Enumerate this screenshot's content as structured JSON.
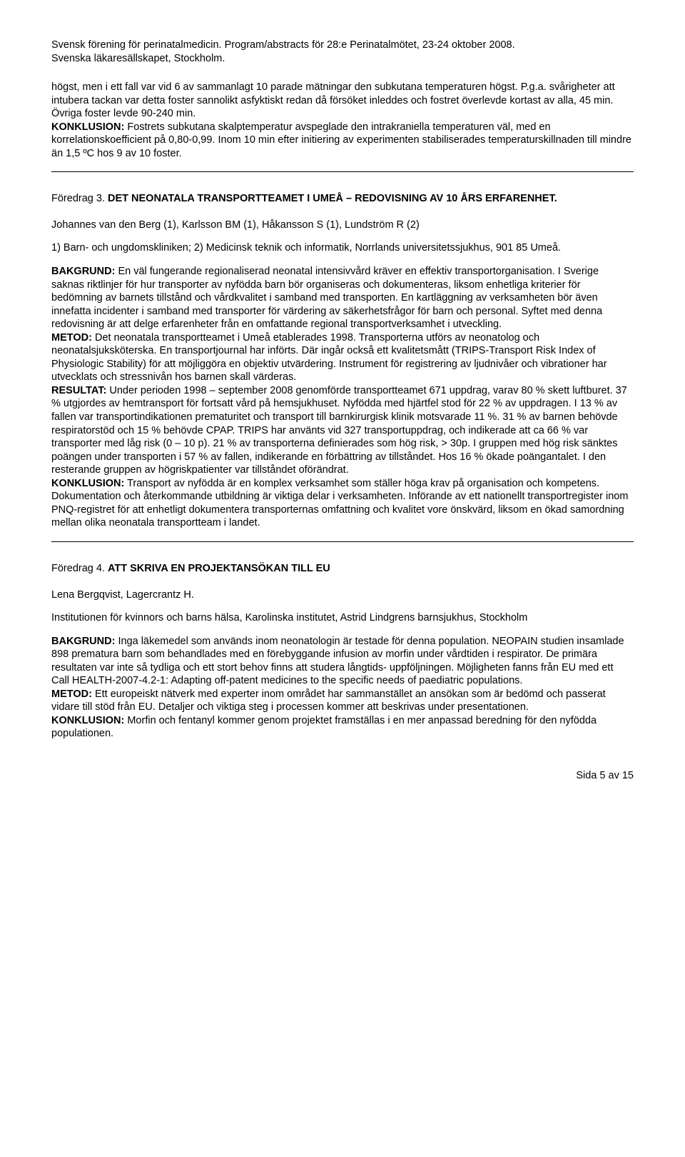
{
  "header": {
    "line1": "Svensk förening för perinatalmedicin. Program/abstracts för 28:e Perinatalmötet, 23-24 oktober 2008.",
    "line2": "Svenska läkaresällskapet, Stockholm."
  },
  "intro": {
    "p1_a": "högst, men i ett fall var vid 6 av sammanlagt 10 parade mätningar den subkutana temperaturen högst. P.g.a. svårigheter att intubera tackan var detta foster sannolikt asfyktiskt redan då försöket inleddes och fostret överlevde kortast av alla, 45 min. Övriga foster levde 90-240 min.",
    "p1_k": "KONKLUSION:",
    "p1_b": " Fostrets subkutana skalptemperatur avspeglade den intrakraniella temperaturen väl, med en korrelationskoefficient på 0,80-0,99. Inom 10 min efter initiering av experimenten stabiliserades temperaturskillnaden till mindre än 1,5 ºC hos 9 av 10 foster."
  },
  "foredrag3": {
    "num": "Föredrag 3. ",
    "title": "DET NEONATALA TRANSPORTTEAMET I UMEÅ – REDOVISNING AV 10 ÅRS ERFARENHET.",
    "authors": "Johannes van den Berg (1), Karlsson BM (1), Håkansson S (1), Lundström R (2)",
    "affil": "1) Barn- och ungdomskliniken; 2) Medicinsk teknik och informatik, Norrlands universitetssjukhus, 901 85 Umeå.",
    "h_bak": "BAKGRUND:",
    "t_bak": " En väl fungerande regionaliserad neonatal intensivvård kräver en effektiv transportorganisation. I Sverige saknas riktlinjer för hur transporter av nyfödda barn bör organiseras och dokumenteras, liksom enhetliga kriterier för bedömning av barnets tillstånd och vårdkvalitet i samband med transporten. En kartläggning av verksamheten bör även innefatta incidenter i samband med transporter för värdering av säkerhetsfrågor för barn och personal. Syftet med denna redovisning är att delge erfarenheter från en omfattande regional transportverksamhet i utveckling.",
    "h_met": "METOD:",
    "t_met": " Det neonatala transportteamet i Umeå etablerades 1998. Transporterna utförs av neonatolog och neonatalsjuksköterska. En transportjournal har införts. Där ingår också ett kvalitetsmått (TRIPS-Transport Risk Index of Physiologic Stability) för att möjliggöra en objektiv utvärdering. Instrument för registrering av ljudnivåer och vibrationer har utvecklats och stressnivån hos barnen skall värderas.",
    "h_res": "RESULTAT:",
    "t_res": " Under perioden 1998 – september 2008 genomförde transportteamet 671 uppdrag, varav 80 % skett luftburet. 37 % utgjordes av hemtransport för fortsatt vård på hemsjukhuset. Nyfödda med hjärtfel stod för 22 % av uppdragen. I 13 % av fallen var transportindikationen prematuritet och transport till barnkirurgisk klinik motsvarade 11 %. 31 % av barnen behövde respiratorstöd och 15 % behövde CPAP. TRIPS har använts vid 327 transportuppdrag, och indikerade att ca 66 % var transporter med låg risk (0 – 10 p). 21 % av transporterna definierades som hög risk, > 30p. I gruppen med hög risk sänktes poängen under transporten i 57 % av fallen, indikerande en förbättring av tillståndet. Hos 16 % ökade poängantalet. I den resterande gruppen av högriskpatienter var tillståndet oförändrat.",
    "h_kon": "KONKLUSION:",
    "t_kon": " Transport av nyfödda är en komplex verksamhet som ställer höga krav på organisation och kompetens. Dokumentation och återkommande utbildning är viktiga delar i verksamheten. Införande av ett nationellt transportregister inom PNQ-registret för att enhetligt dokumentera transporternas omfattning och kvalitet vore önskvärd, liksom en ökad samordning mellan olika neonatala transportteam i landet."
  },
  "foredrag4": {
    "num": "Föredrag 4. ",
    "title": "ATT SKRIVA EN PROJEKTANSÖKAN TILL EU",
    "authors": "Lena Bergqvist, Lagercrantz H.",
    "affil": "Institutionen för kvinnors och barns hälsa, Karolinska institutet, Astrid Lindgrens barnsjukhus, Stockholm",
    "h_bak": "BAKGRUND:",
    "t_bak": " Inga läkemedel som används inom neonatologin är testade för denna population. NEOPAIN studien insamlade 898 prematura barn som behandlades med en förebyggande infusion av morfin under vårdtiden i respirator. De primära resultaten var inte så tydliga och ett stort behov finns att studera långtids- uppföljningen. Möjligheten fanns från EU med ett Call HEALTH-2007-4.2-1: Adapting off-patent medicines to the specific needs of paediatric populations.",
    "h_met": "METOD:",
    "t_met": " Ett europeiskt nätverk med experter inom området har sammanstället an ansökan som är bedömd och passerat vidare till stöd från EU. Detaljer och viktiga steg i processen kommer att beskrivas under presentationen.",
    "h_kon": "KONKLUSION:",
    "t_kon": " Morfin och fentanyl kommer genom projektet framställas i en mer anpassad beredning för den nyfödda populationen."
  },
  "footer": {
    "page": "Sida 5 av 15"
  }
}
